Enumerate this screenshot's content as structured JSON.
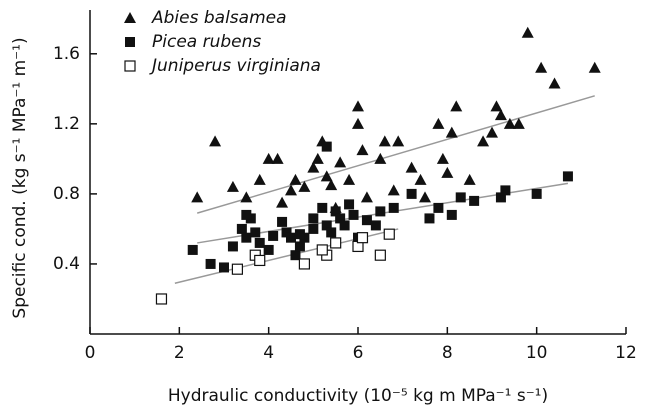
{
  "chart_data": {
    "type": "scatter",
    "xlabel": "Hydraulic conductivity (10⁻⁵ kg m MPa⁻¹ s⁻¹)",
    "ylabel": "Specific cond. (kg s⁻¹ MPa⁻¹ m⁻¹)",
    "xlim": [
      0,
      12
    ],
    "xticks": [
      0,
      2,
      4,
      6,
      8,
      10,
      12
    ],
    "ylim": [
      0,
      1.85
    ],
    "yticks": [
      0.4,
      0.8,
      1.2,
      1.6
    ],
    "grid": false,
    "legend": "top-left",
    "series": [
      {
        "name": "Abies balsamea",
        "color": "#111111",
        "marker": "triangle",
        "x": [
          2.4,
          2.8,
          3.2,
          3.5,
          3.8,
          4.0,
          4.2,
          4.3,
          4.5,
          4.6,
          4.8,
          5.0,
          5.1,
          5.2,
          5.3,
          5.4,
          5.6,
          5.8,
          6.0,
          6.0,
          6.1,
          6.2,
          6.5,
          6.6,
          6.9,
          7.2,
          7.4,
          7.5,
          7.8,
          7.9,
          8.0,
          8.1,
          8.2,
          8.5,
          8.8,
          9.0,
          9.1,
          9.2,
          9.4,
          9.6,
          9.8,
          10.1,
          10.4,
          11.3,
          6.8,
          5.5
        ],
        "values": [
          0.78,
          1.1,
          0.84,
          0.78,
          0.88,
          1.0,
          1.0,
          0.75,
          0.82,
          0.88,
          0.84,
          0.95,
          1.0,
          1.1,
          0.9,
          0.85,
          0.98,
          0.88,
          1.3,
          1.2,
          1.05,
          0.78,
          1.0,
          1.1,
          1.1,
          0.95,
          0.88,
          0.78,
          1.2,
          1.0,
          0.92,
          1.15,
          1.3,
          0.88,
          1.1,
          1.15,
          1.3,
          1.25,
          1.2,
          1.2,
          1.72,
          1.52,
          1.43,
          1.52,
          0.82,
          0.72
        ],
        "fit_x": [
          2.4,
          11.3
        ],
        "fit_y": [
          0.69,
          1.36
        ]
      },
      {
        "name": "Picea rubens",
        "color": "#111111",
        "marker": "square",
        "x": [
          2.3,
          2.7,
          3.0,
          3.2,
          3.4,
          3.5,
          3.6,
          3.7,
          3.8,
          4.0,
          4.1,
          4.3,
          4.4,
          4.5,
          4.6,
          4.7,
          4.8,
          5.0,
          5.0,
          5.2,
          5.3,
          5.4,
          5.5,
          5.6,
          5.7,
          5.9,
          6.0,
          6.2,
          6.4,
          6.5,
          6.8,
          7.2,
          7.6,
          7.8,
          8.1,
          8.3,
          8.6,
          9.2,
          9.3,
          10.0,
          10.7,
          5.3,
          3.5,
          4.7,
          5.8
        ],
        "values": [
          0.48,
          0.4,
          0.38,
          0.5,
          0.6,
          0.55,
          0.66,
          0.58,
          0.52,
          0.48,
          0.56,
          0.64,
          0.58,
          0.55,
          0.45,
          0.5,
          0.55,
          0.66,
          0.6,
          0.72,
          0.62,
          0.58,
          0.7,
          0.66,
          0.62,
          0.68,
          0.55,
          0.65,
          0.62,
          0.7,
          0.72,
          0.8,
          0.66,
          0.72,
          0.68,
          0.78,
          0.76,
          0.78,
          0.82,
          0.8,
          0.9,
          1.07,
          0.68,
          0.57,
          0.74
        ],
        "fit_x": [
          2.4,
          10.7
        ],
        "fit_y": [
          0.52,
          0.86
        ]
      },
      {
        "name": "Juniperus virginiana",
        "color": "#111111",
        "marker": "open-square",
        "x": [
          1.6,
          3.3,
          3.7,
          3.8,
          4.8,
          5.3,
          5.5,
          6.0,
          6.1,
          6.5,
          6.7,
          5.2
        ],
        "values": [
          0.2,
          0.37,
          0.45,
          0.42,
          0.4,
          0.45,
          0.52,
          0.5,
          0.55,
          0.45,
          0.57,
          0.48
        ],
        "fit_x": [
          1.9,
          6.9
        ],
        "fit_y": [
          0.29,
          0.6
        ]
      }
    ]
  }
}
